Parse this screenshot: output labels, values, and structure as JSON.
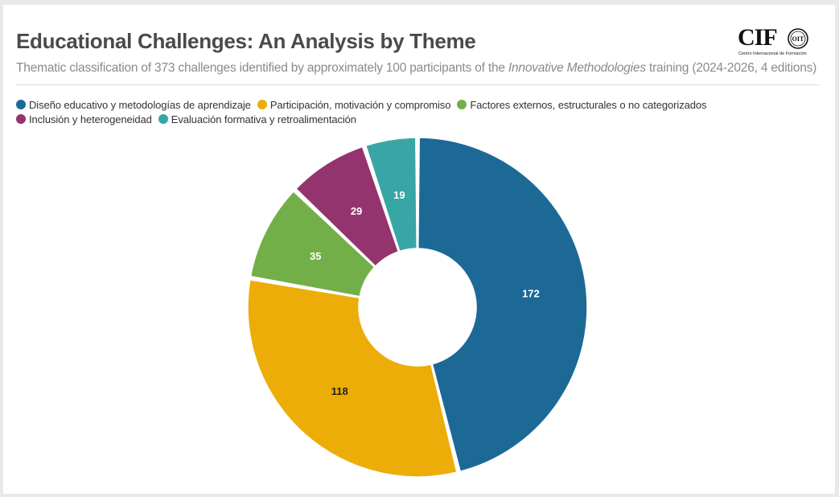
{
  "header": {
    "title": "Educational Challenges: An Analysis by Theme",
    "subtitle_pre": "Thematic classification of 373 challenges identified by approximately 100 participants of the ",
    "subtitle_em": "Innovative Methodologies",
    "subtitle_post": " training (2024-2026, 4 editions)"
  },
  "logo": {
    "word": "CIF",
    "caption": "Centro Internacional de Formación",
    "seal_text": "OIT",
    "seal_icon": "ilo-seal-icon"
  },
  "chart_data": {
    "type": "pie",
    "donut": true,
    "title": "Educational Challenges: An Analysis by Theme",
    "legend_position": "top-left",
    "categories": [
      "Diseño educativo y metodologías de aprendizaje",
      "Participación, motivación y compromiso",
      "Factores externos, estructurales o no categorizados",
      "Inclusión y heterogeneidad",
      "Evaluación formativa y retroalimentación"
    ],
    "values": [
      172,
      118,
      35,
      29,
      19
    ],
    "labels": [
      "172",
      "118",
      "35",
      "29",
      "19"
    ],
    "colors": [
      "#1d6996",
      "#edad08",
      "#73af48",
      "#94346e",
      "#38a6a5"
    ],
    "label_colors": [
      "#ffffff",
      "#222222",
      "#ffffff",
      "#ffffff",
      "#ffffff"
    ],
    "legend_rows": [
      [
        0,
        1,
        2
      ],
      [
        3,
        4
      ]
    ]
  }
}
